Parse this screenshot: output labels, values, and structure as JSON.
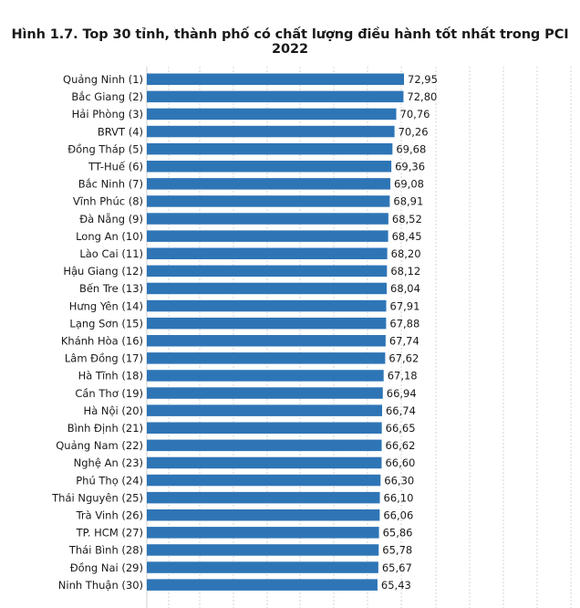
{
  "chart_data": {
    "type": "bar",
    "orientation": "horizontal",
    "title": "Hình 1.7. Top 30 tỉnh, thành phố có chất lượng điều hành tốt nhất trong PCI 2022",
    "xlabel": "",
    "ylabel": "",
    "xlim": [
      0,
      72.95
    ],
    "grid": true,
    "bar_color": "#2e75b6",
    "categories": [
      "Quảng Ninh (1)",
      "Bắc Giang (2)",
      "Hải Phòng (3)",
      "BRVT (4)",
      "Đồng Tháp (5)",
      "TT-Huế (6)",
      "Bắc Ninh (7)",
      "Vĩnh Phúc (8)",
      "Đà Nẵng (9)",
      "Long An (10)",
      "Lào Cai (11)",
      "Hậu Giang (12)",
      "Bến Tre (13)",
      "Hưng Yên (14)",
      "Lạng Sơn (15)",
      "Khánh Hòa (16)",
      "Lâm Đồng (17)",
      "Hà Tĩnh (18)",
      "Cần Thơ (19)",
      "Hà Nội (20)",
      "Bình Định (21)",
      "Quảng Nam (22)",
      "Nghệ An (23)",
      "Phú Thọ (24)",
      "Thái Nguyên (25)",
      "Trà Vinh (26)",
      "TP. HCM (27)",
      "Thái Bình (28)",
      "Đồng Nai (29)",
      "Ninh Thuận (30)"
    ],
    "values": [
      72.95,
      72.8,
      70.76,
      70.26,
      69.68,
      69.36,
      69.08,
      68.91,
      68.52,
      68.45,
      68.2,
      68.12,
      68.04,
      67.91,
      67.88,
      67.74,
      67.62,
      67.18,
      66.94,
      66.74,
      66.65,
      66.62,
      66.6,
      66.3,
      66.1,
      66.06,
      65.86,
      65.78,
      65.67,
      65.43
    ],
    "value_labels": [
      "72,95",
      "72,80",
      "70,76",
      "70,26",
      "69,68",
      "69,36",
      "69,08",
      "68,91",
      "68,52",
      "68,45",
      "68,20",
      "68,12",
      "68,04",
      "67,91",
      "67,88",
      "67,74",
      "67,62",
      "67,18",
      "66,94",
      "66,74",
      "66,65",
      "66,62",
      "66,60",
      "66,30",
      "66,10",
      "66,06",
      "65,86",
      "65,78",
      "65,67",
      "65,43"
    ]
  }
}
